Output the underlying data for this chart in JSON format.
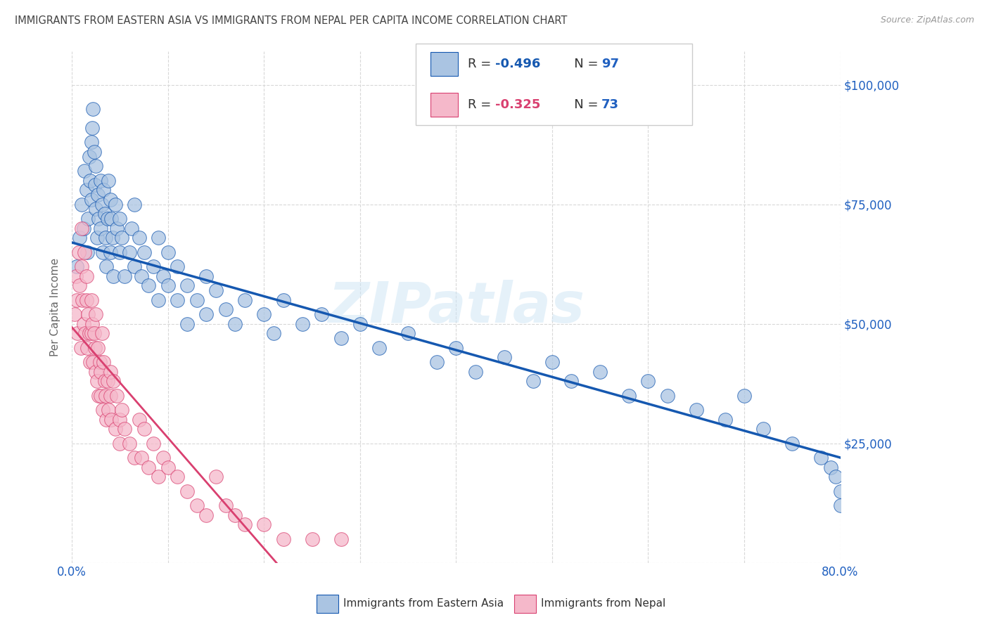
{
  "title": "IMMIGRANTS FROM EASTERN ASIA VS IMMIGRANTS FROM NEPAL PER CAPITA INCOME CORRELATION CHART",
  "source": "Source: ZipAtlas.com",
  "ylabel": "Per Capita Income",
  "legend_labels": [
    "Immigrants from Eastern Asia",
    "Immigrants from Nepal"
  ],
  "legend_r1": "-0.496",
  "legend_n1": "97",
  "legend_r2": "-0.325",
  "legend_n2": "73",
  "color_ea": "#aac4e2",
  "color_ea_line": "#1558b0",
  "color_np": "#f5b8ca",
  "color_np_line": "#d94070",
  "color_np_ext": "#d8c8d8",
  "watermark": "ZIPatlas",
  "background": "#ffffff",
  "grid_color": "#d8d8d8",
  "title_color": "#444444",
  "tick_color": "#2060c0",
  "xmin": 0.0,
  "xmax": 0.8,
  "ymin": 0,
  "ymax": 107000,
  "ea_x": [
    0.005,
    0.008,
    0.01,
    0.012,
    0.013,
    0.015,
    0.016,
    0.017,
    0.018,
    0.019,
    0.02,
    0.02,
    0.021,
    0.022,
    0.023,
    0.024,
    0.025,
    0.025,
    0.026,
    0.027,
    0.028,
    0.03,
    0.03,
    0.031,
    0.032,
    0.033,
    0.034,
    0.035,
    0.036,
    0.037,
    0.038,
    0.04,
    0.04,
    0.041,
    0.042,
    0.043,
    0.045,
    0.047,
    0.05,
    0.05,
    0.052,
    0.055,
    0.06,
    0.062,
    0.065,
    0.065,
    0.07,
    0.072,
    0.075,
    0.08,
    0.085,
    0.09,
    0.09,
    0.095,
    0.1,
    0.1,
    0.11,
    0.11,
    0.12,
    0.12,
    0.13,
    0.14,
    0.14,
    0.15,
    0.16,
    0.17,
    0.18,
    0.2,
    0.21,
    0.22,
    0.24,
    0.26,
    0.28,
    0.3,
    0.32,
    0.35,
    0.38,
    0.4,
    0.42,
    0.45,
    0.48,
    0.5,
    0.52,
    0.55,
    0.58,
    0.6,
    0.62,
    0.65,
    0.68,
    0.7,
    0.72,
    0.75,
    0.78,
    0.79,
    0.795,
    0.8,
    0.8
  ],
  "ea_y": [
    62000,
    68000,
    75000,
    70000,
    82000,
    78000,
    65000,
    72000,
    85000,
    80000,
    88000,
    76000,
    91000,
    95000,
    86000,
    79000,
    74000,
    83000,
    68000,
    77000,
    72000,
    80000,
    70000,
    75000,
    65000,
    78000,
    73000,
    68000,
    62000,
    72000,
    80000,
    76000,
    65000,
    72000,
    68000,
    60000,
    75000,
    70000,
    65000,
    72000,
    68000,
    60000,
    65000,
    70000,
    62000,
    75000,
    68000,
    60000,
    65000,
    58000,
    62000,
    68000,
    55000,
    60000,
    65000,
    58000,
    62000,
    55000,
    58000,
    50000,
    55000,
    60000,
    52000,
    57000,
    53000,
    50000,
    55000,
    52000,
    48000,
    55000,
    50000,
    52000,
    47000,
    50000,
    45000,
    48000,
    42000,
    45000,
    40000,
    43000,
    38000,
    42000,
    38000,
    40000,
    35000,
    38000,
    35000,
    32000,
    30000,
    35000,
    28000,
    25000,
    22000,
    20000,
    18000,
    15000,
    12000
  ],
  "np_x": [
    0.003,
    0.004,
    0.005,
    0.006,
    0.007,
    0.008,
    0.009,
    0.01,
    0.01,
    0.011,
    0.012,
    0.013,
    0.014,
    0.015,
    0.015,
    0.016,
    0.017,
    0.018,
    0.019,
    0.02,
    0.02,
    0.021,
    0.022,
    0.023,
    0.024,
    0.025,
    0.025,
    0.026,
    0.027,
    0.028,
    0.029,
    0.03,
    0.03,
    0.031,
    0.032,
    0.033,
    0.034,
    0.035,
    0.036,
    0.037,
    0.038,
    0.04,
    0.04,
    0.041,
    0.043,
    0.045,
    0.047,
    0.05,
    0.05,
    0.052,
    0.055,
    0.06,
    0.065,
    0.07,
    0.072,
    0.075,
    0.08,
    0.085,
    0.09,
    0.095,
    0.1,
    0.11,
    0.12,
    0.13,
    0.14,
    0.15,
    0.16,
    0.17,
    0.18,
    0.2,
    0.22,
    0.25,
    0.28
  ],
  "np_y": [
    52000,
    60000,
    55000,
    48000,
    65000,
    58000,
    45000,
    70000,
    62000,
    55000,
    50000,
    65000,
    48000,
    60000,
    55000,
    45000,
    52000,
    48000,
    42000,
    55000,
    48000,
    50000,
    42000,
    48000,
    45000,
    40000,
    52000,
    38000,
    45000,
    35000,
    42000,
    40000,
    35000,
    48000,
    32000,
    42000,
    38000,
    35000,
    30000,
    38000,
    32000,
    40000,
    35000,
    30000,
    38000,
    28000,
    35000,
    30000,
    25000,
    32000,
    28000,
    25000,
    22000,
    30000,
    22000,
    28000,
    20000,
    25000,
    18000,
    22000,
    20000,
    18000,
    15000,
    12000,
    10000,
    18000,
    12000,
    10000,
    8000,
    8000,
    5000,
    5000,
    5000
  ]
}
